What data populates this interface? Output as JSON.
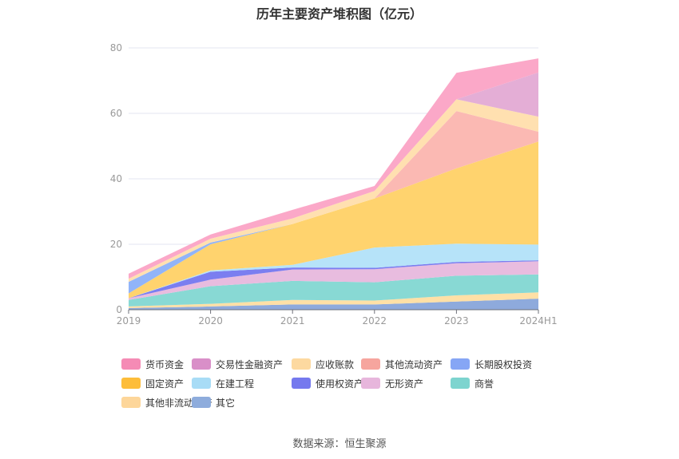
{
  "chart_data": {
    "type": "area",
    "title": "历年主要资产堆积图（亿元）",
    "categories": [
      "2019",
      "2020",
      "2021",
      "2022",
      "2023",
      "2024H1"
    ],
    "ylim": [
      0,
      80
    ],
    "yticks": [
      0,
      20,
      40,
      60,
      80
    ],
    "stacked": true,
    "grid": true,
    "legend_position": "bottom",
    "series": [
      {
        "name": "其它",
        "color": "#8eaadc",
        "values": [
          0.5,
          1.0,
          1.6,
          1.6,
          2.5,
          3.4
        ]
      },
      {
        "name": "其他非流动资产",
        "color": "#ffe0a6",
        "values": [
          0.5,
          0.8,
          1.4,
          1.2,
          1.9,
          1.9
        ]
      },
      {
        "name": "商誉",
        "color": "#88d9d4",
        "values": [
          2.0,
          5.4,
          5.8,
          5.6,
          6.0,
          5.5
        ]
      },
      {
        "name": "无形资产",
        "color": "#e8bcdf",
        "values": [
          0.5,
          2.0,
          3.5,
          4.0,
          3.8,
          4.0
        ]
      },
      {
        "name": "使用权资产",
        "color": "#7b7ef0",
        "values": [
          0.0,
          2.4,
          0.6,
          0.4,
          0.4,
          0.3
        ]
      },
      {
        "name": "在建工程",
        "color": "#b6e3f9",
        "values": [
          0.0,
          0.4,
          0.8,
          6.2,
          5.6,
          4.8
        ]
      },
      {
        "name": "固定资产",
        "color": "#ffd36e",
        "values": [
          1.5,
          8.0,
          12.5,
          15.0,
          23.0,
          31.5
        ]
      },
      {
        "name": "长期股权投资",
        "color": "#91b4f9",
        "values": [
          3.5,
          0.5,
          0.0,
          0.0,
          0.0,
          0.0
        ]
      },
      {
        "name": "其他流动资产",
        "color": "#fbb9b3",
        "values": [
          0.0,
          0.0,
          0.0,
          0.0,
          17.5,
          3.0
        ]
      },
      {
        "name": "应收账款",
        "color": "#ffe0b0",
        "values": [
          1.0,
          1.2,
          1.7,
          2.3,
          3.6,
          4.6
        ]
      },
      {
        "name": "交易性金融资产",
        "color": "#e4aed6",
        "values": [
          0.0,
          0.0,
          0.0,
          0.0,
          0.0,
          13.5
        ]
      },
      {
        "name": "货币资金",
        "color": "#fba8c8",
        "values": [
          1.5,
          1.3,
          2.6,
          1.5,
          8.1,
          4.3
        ]
      }
    ]
  },
  "legend": [
    {
      "label": "货币资金",
      "color": "#f58bb5"
    },
    {
      "label": "交易性金融资产",
      "color": "#d98fc8"
    },
    {
      "label": "应收账款",
      "color": "#fdd9a0"
    },
    {
      "label": "其他流动资产",
      "color": "#f6a59e"
    },
    {
      "label": "长期股权投资",
      "color": "#86a6f5"
    },
    {
      "label": "固定资产",
      "color": "#fdbd3a"
    },
    {
      "label": "在建工程",
      "color": "#a8dcf6"
    },
    {
      "label": "使用权资产",
      "color": "#7579ee"
    },
    {
      "label": "无形资产",
      "color": "#e7b6dc"
    },
    {
      "label": "商誉",
      "color": "#7dd4cf"
    },
    {
      "label": "其他非流动资产",
      "color": "#fdd69a"
    },
    {
      "label": "其它",
      "color": "#8eacdc"
    }
  ],
  "source": "数据来源：恒生聚源"
}
